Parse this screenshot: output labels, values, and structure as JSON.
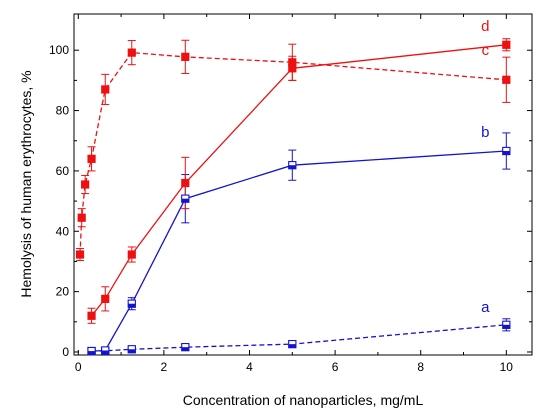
{
  "chart_data": {
    "type": "line",
    "xlabel": "Concentration of nanoparticles, mg/mL",
    "ylabel": "Hemolysis of human erythrocytes, %",
    "xlim": [
      -0.1,
      10.6
    ],
    "ylim": [
      -1,
      112
    ],
    "xticks": [
      0,
      2,
      4,
      6,
      8,
      10
    ],
    "yticks": [
      0,
      20,
      40,
      60,
      80,
      100
    ],
    "grid": false,
    "series": [
      {
        "label": "a",
        "color": "#1414d0",
        "line": "dashed",
        "marker": "half-filled-square",
        "points": [
          {
            "x": 0.31,
            "y": 0.3,
            "err": 0.5
          },
          {
            "x": 0.63,
            "y": 0.4,
            "err": 0.5
          },
          {
            "x": 1.25,
            "y": 0.9,
            "err": 0.6
          },
          {
            "x": 2.5,
            "y": 1.6,
            "err": 0.8
          },
          {
            "x": 5,
            "y": 2.6,
            "err": 0.9
          },
          {
            "x": 10,
            "y": 9.0,
            "err": 2.0
          }
        ]
      },
      {
        "label": "b",
        "color": "#1414d0",
        "line": "solid",
        "marker": "half-filled-square",
        "points": [
          {
            "x": 0.31,
            "y": 0.3,
            "err": 0.5
          },
          {
            "x": 0.63,
            "y": 0.5,
            "err": 0.6
          },
          {
            "x": 1.25,
            "y": 16.0,
            "err": 2.0
          },
          {
            "x": 2.5,
            "y": 50.8,
            "err": 8.0
          },
          {
            "x": 5,
            "y": 61.9,
            "err": 5.0
          },
          {
            "x": 10,
            "y": 66.6,
            "err": 6.0
          }
        ]
      },
      {
        "label": "c",
        "color": "#ee1111",
        "line": "dashed",
        "marker": "filled-square",
        "points": [
          {
            "x": 0.04,
            "y": 32.3,
            "err": 2.0
          },
          {
            "x": 0.08,
            "y": 44.5,
            "err": 3.0
          },
          {
            "x": 0.16,
            "y": 55.5,
            "err": 3.0
          },
          {
            "x": 0.31,
            "y": 64.0,
            "err": 4.0
          },
          {
            "x": 0.63,
            "y": 87.0,
            "err": 5.0
          },
          {
            "x": 1.25,
            "y": 99.2,
            "err": 4.0
          },
          {
            "x": 2.5,
            "y": 97.8,
            "err": 5.5
          },
          {
            "x": 5,
            "y": 96.0,
            "err": 6.0
          },
          {
            "x": 10,
            "y": 90.2,
            "err": 7.5
          }
        ]
      },
      {
        "label": "d",
        "color": "#ee1111",
        "line": "solid",
        "marker": "filled-square",
        "points": [
          {
            "x": 0.31,
            "y": 12.0,
            "err": 2.5
          },
          {
            "x": 0.63,
            "y": 17.6,
            "err": 4.0
          },
          {
            "x": 1.25,
            "y": 32.3,
            "err": 2.5
          },
          {
            "x": 2.5,
            "y": 56.0,
            "err": 8.5
          },
          {
            "x": 5,
            "y": 94.0,
            "err": 4.0
          },
          {
            "x": 10,
            "y": 101.8,
            "err": 2.0
          }
        ]
      }
    ]
  }
}
